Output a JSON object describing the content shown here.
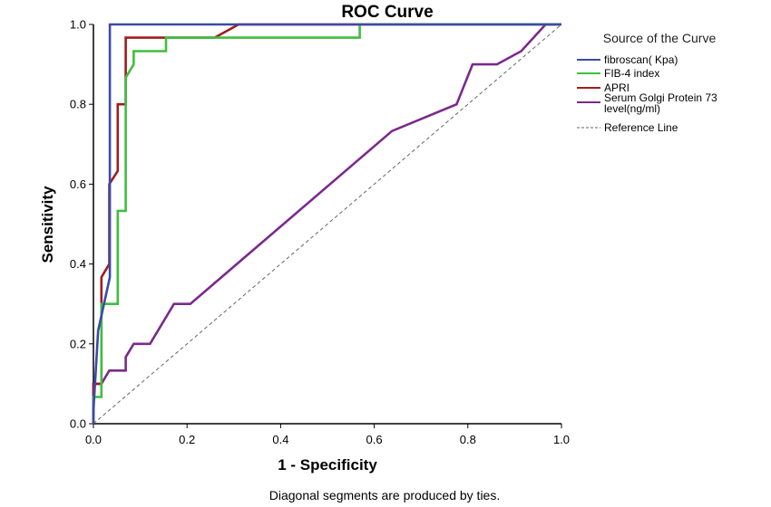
{
  "chart_data": {
    "type": "line",
    "title": "ROC Curve",
    "xlabel": "1 - Specificity",
    "ylabel": "Sensitivity",
    "xlim": [
      0.0,
      1.0
    ],
    "ylim": [
      0.0,
      1.0
    ],
    "x_ticks": [
      "0.0",
      "0.2",
      "0.4",
      "0.6",
      "0.8",
      "1.0"
    ],
    "y_ticks": [
      "0.0",
      "0.2",
      "0.4",
      "0.6",
      "0.8",
      "1.0"
    ],
    "grid": false,
    "legend_title": "Source of the Curve",
    "legend_position": "right",
    "footnote": "Diagonal segments are produced by ties.",
    "series": [
      {
        "name": "fibroscan( Kpa)",
        "color": "#3b4ba8",
        "x": [
          0.0,
          0.0,
          0.01,
          0.035,
          0.035,
          0.3,
          1.0
        ],
        "y": [
          0.0,
          0.033,
          0.233,
          0.367,
          1.0,
          1.0,
          1.0
        ]
      },
      {
        "name": "FIB-4 index",
        "color": "#3fbf3f",
        "x": [
          0.0,
          0.0,
          0.017,
          0.017,
          0.052,
          0.052,
          0.069,
          0.069,
          0.086,
          0.086,
          0.155,
          0.155,
          0.569,
          0.569,
          1.0
        ],
        "y": [
          0.0,
          0.067,
          0.067,
          0.3,
          0.3,
          0.533,
          0.533,
          0.867,
          0.9,
          0.933,
          0.933,
          0.967,
          0.967,
          1.0,
          1.0
        ]
      },
      {
        "name": "APRI",
        "color": "#a01c1c",
        "x": [
          0.0,
          0.0,
          0.017,
          0.017,
          0.034,
          0.034,
          0.052,
          0.052,
          0.069,
          0.069,
          0.259,
          0.31,
          1.0
        ],
        "y": [
          0.0,
          0.1,
          0.1,
          0.367,
          0.4,
          0.6,
          0.633,
          0.8,
          0.8,
          0.967,
          0.967,
          1.0,
          1.0
        ]
      },
      {
        "name": "Serum Golgi Protein 73 level(ng/ml)",
        "color": "#7a2a8c",
        "x": [
          0.0,
          0.0,
          0.017,
          0.034,
          0.069,
          0.069,
          0.086,
          0.121,
          0.172,
          0.207,
          0.638,
          0.776,
          0.81,
          0.862,
          0.914,
          0.966,
          1.0
        ],
        "y": [
          0.0,
          0.1,
          0.1,
          0.133,
          0.133,
          0.167,
          0.2,
          0.2,
          0.3,
          0.3,
          0.733,
          0.8,
          0.9,
          0.9,
          0.933,
          1.0,
          1.0
        ]
      },
      {
        "name": "Reference Line",
        "color": "#666666",
        "dashed": true,
        "x": [
          0.0,
          1.0
        ],
        "y": [
          0.0,
          1.0
        ]
      }
    ]
  }
}
